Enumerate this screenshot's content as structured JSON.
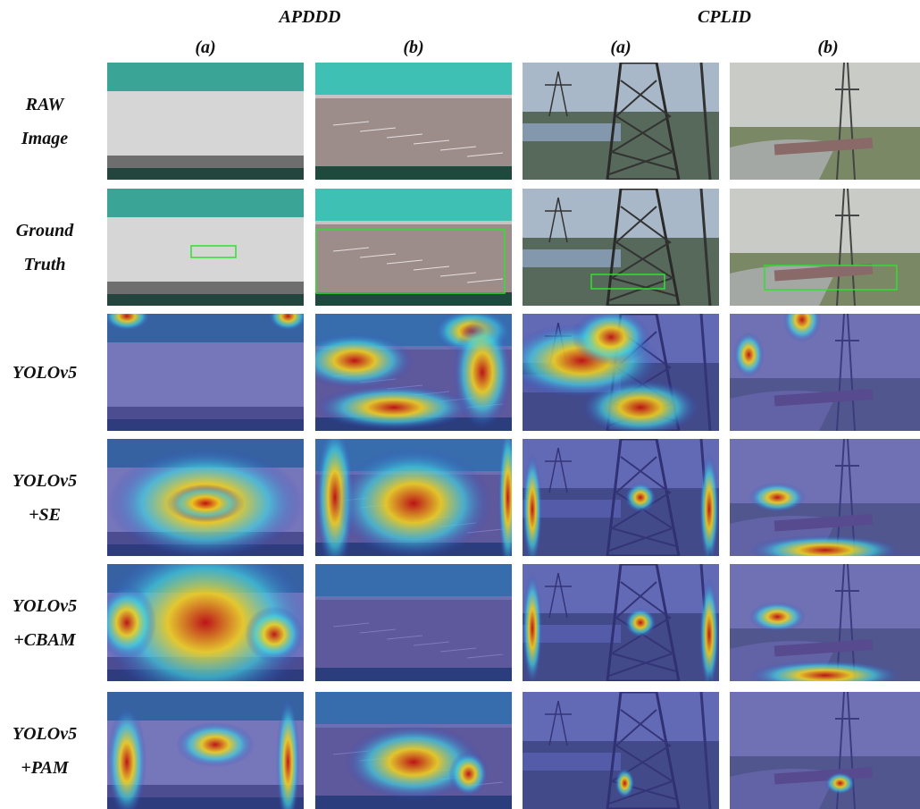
{
  "header": {
    "groups": [
      "APDDD",
      "CPLID"
    ],
    "columns": [
      "(a)",
      "(b)",
      "(a)",
      "(b)"
    ]
  },
  "rows": [
    {
      "label": [
        "RAW",
        "Image"
      ]
    },
    {
      "label": [
        "Ground",
        "Truth"
      ]
    },
    {
      "label": [
        "YOLOv5"
      ]
    },
    {
      "label": [
        "YOLOv5",
        "+SE"
      ]
    },
    {
      "label": [
        "YOLOv5",
        "+CBAM"
      ]
    },
    {
      "label": [
        "YOLOv5",
        "+PAM"
      ]
    }
  ]
}
